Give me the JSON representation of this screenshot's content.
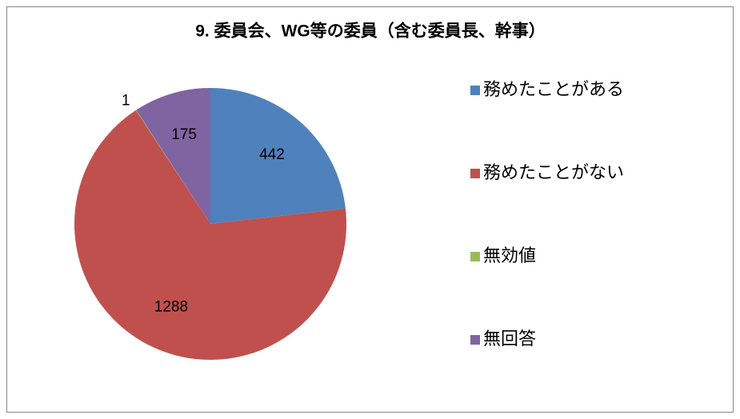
{
  "chart_data": {
    "type": "pie",
    "title": "9. 委員会、WG等の委員（含む委員長、幹事）",
    "categories": [
      "務めたことがある",
      "務めたことがない",
      "無効値",
      "無回答"
    ],
    "values": [
      442,
      1288,
      1,
      175
    ],
    "colors": [
      "#4f81bd",
      "#c0504d",
      "#9bbb59",
      "#8064a2"
    ],
    "legend": "right"
  }
}
